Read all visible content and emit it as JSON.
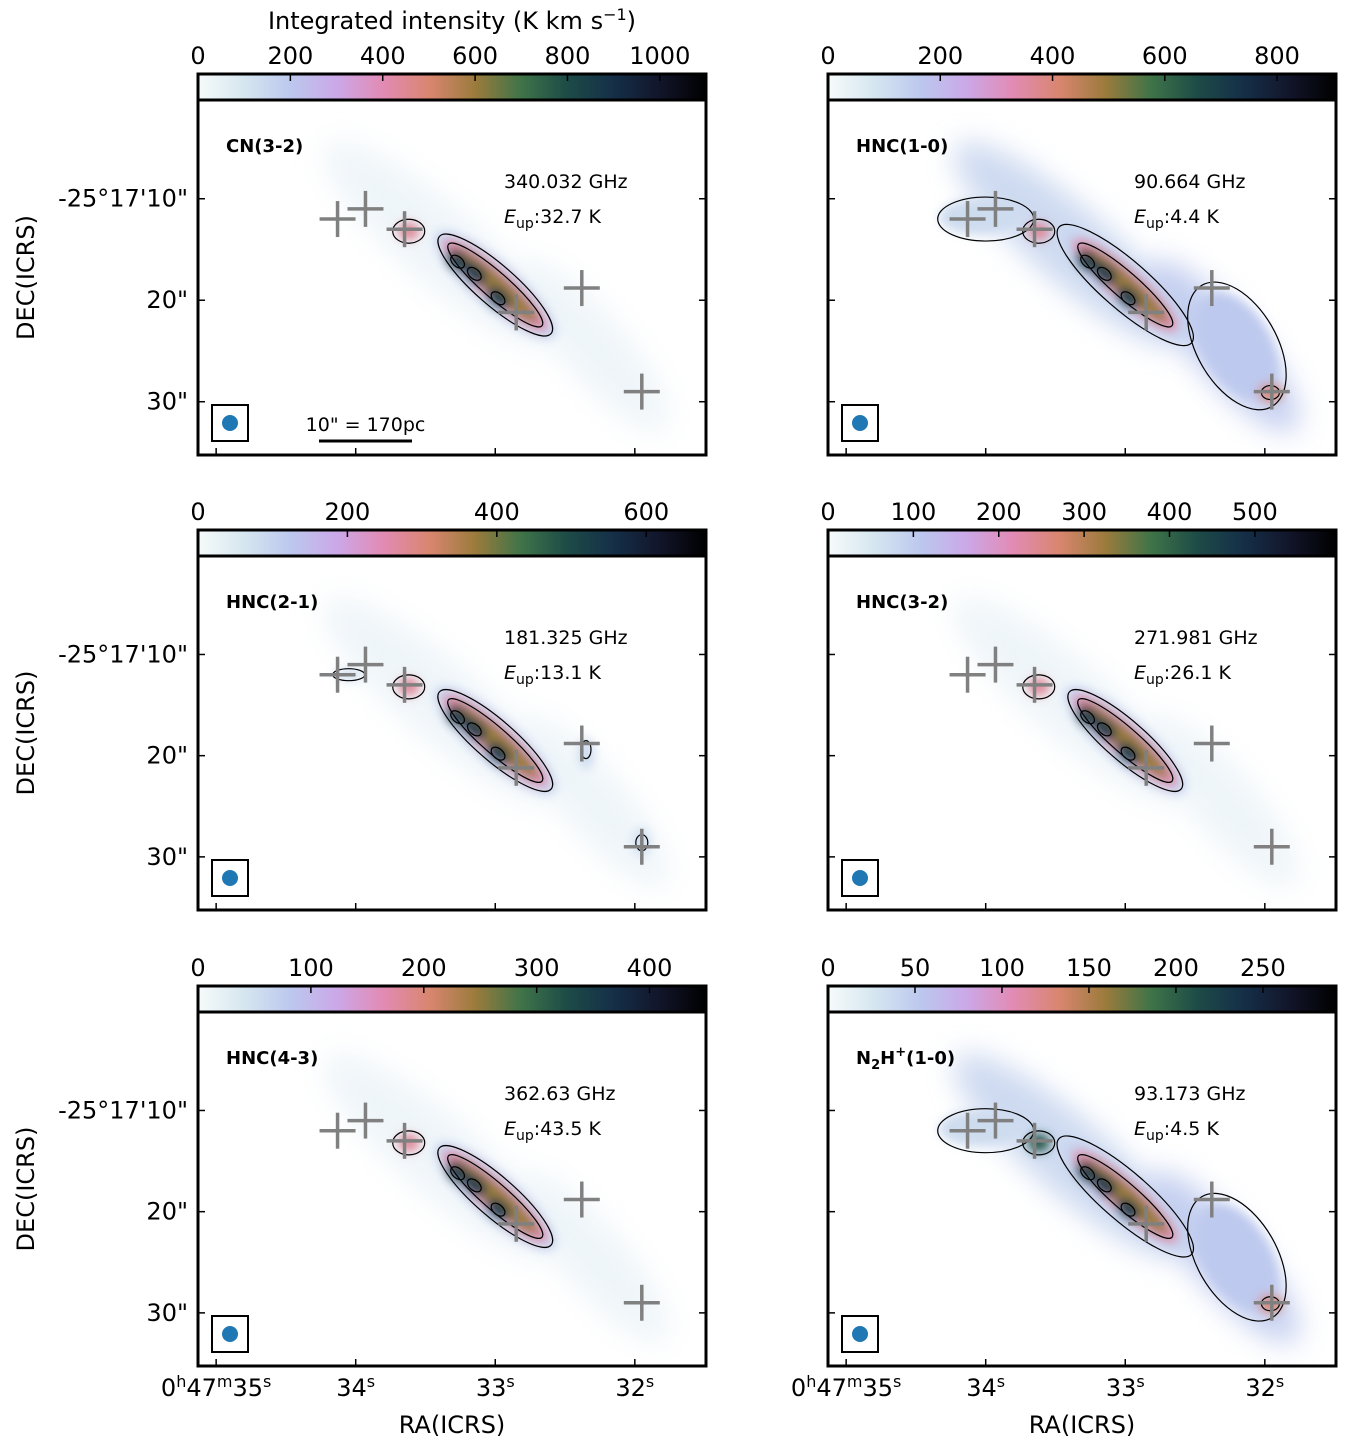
{
  "colormap": [
    "#f6fbfb",
    "#d6e6f0",
    "#bcc8ee",
    "#cba8e8",
    "#e28bb4",
    "#d98670",
    "#9c7b3c",
    "#3f7448",
    "#1d4b47",
    "#152f48",
    "#12152a",
    "#000000"
  ],
  "colorbar_title": "Integrated intensity (K km s",
  "colorbar_title_sup": "−1",
  "colorbar_title_end": ")",
  "scalebar_label": "10\" = 170pc",
  "x_axis": {
    "label": "RA(ICRS)",
    "ticks": [
      {
        "value": 35,
        "main": "0",
        "sup1": "h",
        "mid": "47",
        "sup2": "m",
        "end": "35",
        "sup3": "s"
      },
      {
        "value": 34,
        "main": "",
        "sup1": "",
        "mid": "",
        "sup2": "",
        "end": "34",
        "sup3": "s"
      },
      {
        "value": 33,
        "main": "",
        "sup1": "",
        "mid": "",
        "sup2": "",
        "end": "33",
        "sup3": "s"
      },
      {
        "value": 32,
        "main": "",
        "sup1": "",
        "mid": "",
        "sup2": "",
        "end": "32",
        "sup3": "s"
      }
    ]
  },
  "y_axis": {
    "label": "DEC(ICRS)",
    "ticks": [
      {
        "value": 10,
        "label": "-25°17'10\""
      },
      {
        "value": 20,
        "label": "20\""
      },
      {
        "value": 30,
        "label": "30\""
      }
    ]
  },
  "markers": [
    {
      "ra": 34.13,
      "dec": 12.0
    },
    {
      "ra": 33.93,
      "dec": 11.0
    },
    {
      "ra": 33.65,
      "dec": 13.0
    },
    {
      "ra": 32.85,
      "dec": 21.2
    },
    {
      "ra": 32.38,
      "dec": 18.8
    },
    {
      "ra": 31.95,
      "dec": 29.0
    }
  ],
  "chart_data": [
    {
      "type": "heatmap",
      "label": "CN(3-2)",
      "label_sub": "",
      "label_sup": "",
      "label_rest": "",
      "freq": "340.032 GHz",
      "eup_prefix": "E",
      "eup_sub": "up",
      "eup_value": ":32.7 K",
      "cbar_ticks": [
        0,
        200,
        400,
        600,
        800,
        1000
      ],
      "cbar_max": 1100,
      "extent": "core",
      "peak": 1000,
      "show_colorbar_title": true,
      "show_scalebar": true,
      "show_x_labels": false,
      "show_y_labels": true
    },
    {
      "type": "heatmap",
      "label": "HNC(1-0)",
      "label_sub": "",
      "label_sup": "",
      "label_rest": "",
      "freq": "90.664 GHz",
      "eup_prefix": "E",
      "eup_sub": "up",
      "eup_value": ":4.4 K",
      "cbar_ticks": [
        0,
        200,
        400,
        600,
        800
      ],
      "cbar_max": 905,
      "extent": "extended",
      "peak": 850,
      "show_colorbar_title": false,
      "show_scalebar": false,
      "show_x_labels": false,
      "show_y_labels": false
    },
    {
      "type": "heatmap",
      "label": "HNC(2-1)",
      "label_sub": "",
      "label_sup": "",
      "label_rest": "",
      "freq": "181.325 GHz",
      "eup_prefix": "E",
      "eup_sub": "up",
      "eup_value": ":13.1 K",
      "cbar_ticks": [
        0,
        200,
        400,
        600
      ],
      "cbar_max": 680,
      "extent": "patchy",
      "peak": 650,
      "show_colorbar_title": false,
      "show_scalebar": false,
      "show_x_labels": false,
      "show_y_labels": true
    },
    {
      "type": "heatmap",
      "label": "HNC(3-2)",
      "label_sub": "",
      "label_sup": "",
      "label_rest": "",
      "freq": "271.981 GHz",
      "eup_prefix": "E",
      "eup_sub": "up",
      "eup_value": ":26.1 K",
      "cbar_ticks": [
        0,
        100,
        200,
        300,
        400,
        500
      ],
      "cbar_max": 595,
      "extent": "core",
      "peak": 560,
      "show_colorbar_title": false,
      "show_scalebar": false,
      "show_x_labels": false,
      "show_y_labels": false
    },
    {
      "type": "heatmap",
      "label": "HNC(4-3)",
      "label_sub": "",
      "label_sup": "",
      "label_rest": "",
      "freq": "362.63 GHz",
      "eup_prefix": "E",
      "eup_sub": "up",
      "eup_value": ":43.5 K",
      "cbar_ticks": [
        0,
        100,
        200,
        300,
        400
      ],
      "cbar_max": 450,
      "extent": "core",
      "peak": 430,
      "show_colorbar_title": false,
      "show_scalebar": false,
      "show_x_labels": true,
      "show_y_labels": true
    },
    {
      "type": "heatmap",
      "label": "N",
      "label_sub": "2",
      "label_sup": "H",
      "label_rest": "(1-0)",
      "freq": "93.173 GHz",
      "eup_prefix": "E",
      "eup_sub": "up",
      "eup_value": ":4.5 K",
      "cbar_ticks": [
        0,
        50,
        100,
        150,
        200,
        250
      ],
      "cbar_max": 292,
      "extent": "n2h",
      "peak": 270,
      "show_colorbar_title": false,
      "show_scalebar": false,
      "show_x_labels": true,
      "show_y_labels": false
    }
  ]
}
